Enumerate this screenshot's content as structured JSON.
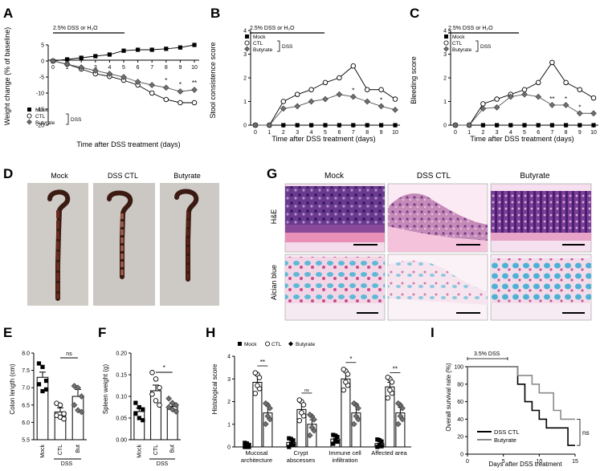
{
  "panels": {
    "A": {
      "letter": "A",
      "bracket_text": "2.5% DSS or H₂O",
      "ylabel": "Weight change (% of baseline)",
      "xlabel": "Time after DSS treatment (days)",
      "yticks": [
        "5",
        "0",
        "-5",
        "-10",
        "-15",
        "-20"
      ],
      "xticks": [
        "0",
        "1",
        "2",
        "3",
        "4",
        "5",
        "6",
        "7",
        "8",
        "9",
        "10"
      ],
      "legend": [
        "Mock",
        "CTL",
        "Butyrate"
      ],
      "legend_group": "DSS",
      "sig": [
        "*",
        "*",
        "**"
      ]
    },
    "B": {
      "letter": "B",
      "bracket_text": "2.5% DSS or H₂O",
      "ylabel": "Stool consistence score",
      "xlabel": "Time after DSS treatment (days)",
      "yticks": [
        "4",
        "3",
        "2",
        "1",
        "0"
      ],
      "xticks": [
        "0",
        "1",
        "2",
        "3",
        "4",
        "5",
        "6",
        "7",
        "8",
        "9",
        "10"
      ],
      "legend": [
        "Mock",
        "CTL",
        "Butyrate"
      ],
      "legend_group": "DSS",
      "sig": [
        "*",
        "*"
      ]
    },
    "C": {
      "letter": "C",
      "bracket_text": "2.5% DSS or H₂O",
      "ylabel": "Bleeding score",
      "xlabel": "Time after DSS treatment (days)",
      "yticks": [
        "4",
        "3",
        "2",
        "1",
        "0"
      ],
      "xticks": [
        "0",
        "1",
        "2",
        "3",
        "4",
        "5",
        "6",
        "7",
        "8",
        "9",
        "10"
      ],
      "legend": [
        "Mock",
        "CTL",
        "Butyrate"
      ],
      "legend_group": "DSS",
      "sig": [
        "**",
        "*",
        "*"
      ]
    },
    "D": {
      "letter": "D",
      "labels": [
        "Mock",
        "DSS CTL",
        "Butyrate"
      ]
    },
    "G": {
      "letter": "G",
      "columns": [
        "Mock",
        "DSS CTL",
        "Butyrate"
      ],
      "rows": [
        "H&E",
        "Alcian blue"
      ]
    },
    "E": {
      "letter": "E",
      "ylabel": "Colon length (cm)",
      "yticks": [
        "8.0",
        "7.5",
        "7.0",
        "6.5",
        "6.0",
        "5.5"
      ],
      "categories": [
        "Mock",
        "CTL",
        "But"
      ],
      "group": "DSS",
      "sig": "ns"
    },
    "F": {
      "letter": "F",
      "ylabel": "Spleen weight (g)",
      "yticks": [
        "0.20",
        "0.15",
        "0.10",
        "0.05",
        "0.00"
      ],
      "categories": [
        "Mock",
        "CTL",
        "But"
      ],
      "group": "DSS",
      "sig": "*"
    },
    "H": {
      "letter": "H",
      "ylabel": "Histological score",
      "yticks": [
        "4",
        "3",
        "2",
        "1",
        "0"
      ],
      "legend": [
        "Mock",
        "CTL",
        "Butyrate"
      ],
      "categories": [
        "Mucosal\narchitecture",
        "Crypt\nabscesses",
        "Immune cell\ninfiltration",
        "Affected area"
      ],
      "sig": [
        "**",
        "ns",
        "*",
        "**"
      ]
    },
    "I": {
      "letter": "I",
      "bracket_text": "3.5% DSS",
      "ylabel": "Overall survival rate (%)",
      "xlabel": "Days after DSS treatment",
      "yticks": [
        "100",
        "80",
        "60",
        "40",
        "20",
        "0"
      ],
      "xticks": [
        "0",
        "5",
        "10",
        "15"
      ],
      "legend": [
        "DSS CTL",
        "Butyrate"
      ],
      "sig": "ns"
    }
  },
  "chart_data": [
    {
      "panel": "A",
      "type": "line",
      "x": [
        0,
        1,
        2,
        3,
        4,
        5,
        6,
        7,
        8,
        9,
        10
      ],
      "ylim": [
        -20,
        5
      ],
      "series": [
        {
          "name": "Mock",
          "values": [
            0,
            0.5,
            1,
            1.5,
            2,
            3.2,
            3.5,
            3.5,
            3.8,
            4.2,
            5
          ]
        },
        {
          "name": "CTL",
          "values": [
            0,
            -1,
            -2.5,
            -4,
            -4.8,
            -6,
            -7.5,
            -10,
            -12,
            -13,
            -13
          ]
        },
        {
          "name": "Butyrate",
          "values": [
            0,
            -1,
            -2,
            -3,
            -4,
            -5,
            -6.5,
            -7.5,
            -8.3,
            -9.5,
            -9
          ]
        }
      ]
    },
    {
      "panel": "B",
      "type": "line",
      "x": [
        0,
        1,
        2,
        3,
        4,
        5,
        6,
        7,
        8,
        9,
        10
      ],
      "ylim": [
        0,
        4
      ],
      "series": [
        {
          "name": "Mock",
          "values": [
            0,
            0,
            0,
            0,
            0,
            0,
            0,
            0,
            0,
            0,
            0
          ]
        },
        {
          "name": "CTL",
          "values": [
            0,
            0,
            1,
            1.3,
            1.5,
            1.8,
            2.0,
            2.5,
            1.5,
            1.5,
            1.1
          ]
        },
        {
          "name": "Butyrate",
          "values": [
            0,
            0,
            0.7,
            0.8,
            1.0,
            1.1,
            1.3,
            1.2,
            1.0,
            0.8,
            0.65
          ]
        }
      ]
    },
    {
      "panel": "C",
      "type": "line",
      "x": [
        0,
        1,
        2,
        3,
        4,
        5,
        6,
        7,
        8,
        9,
        10
      ],
      "ylim": [
        0,
        4
      ],
      "series": [
        {
          "name": "Mock",
          "values": [
            0,
            0,
            0,
            0,
            0,
            0,
            0,
            0,
            0,
            0,
            0
          ]
        },
        {
          "name": "CTL",
          "values": [
            0,
            0,
            0.9,
            1.1,
            1.3,
            1.5,
            1.8,
            2.65,
            1.8,
            1.5,
            1.15
          ]
        },
        {
          "name": "Butyrate",
          "values": [
            0,
            0,
            0.7,
            0.75,
            1.2,
            1.3,
            1.2,
            0.85,
            0.85,
            0.5,
            0.5
          ]
        }
      ]
    },
    {
      "panel": "E",
      "type": "bar",
      "categories": [
        "Mock",
        "CTL",
        "But"
      ],
      "values": [
        7.3,
        6.3,
        6.75
      ],
      "errors": [
        0.15,
        0.12,
        0.2
      ],
      "ylim": [
        5.5,
        8.0
      ],
      "points": [
        [
          7.7,
          7.6,
          7.2,
          7.1,
          6.9,
          6.95
        ],
        [
          6.55,
          6.5,
          6.25,
          6.2,
          6.15,
          6.1
        ],
        [
          7.05,
          7.0,
          6.75,
          6.5,
          6.35,
          6.3
        ]
      ]
    },
    {
      "panel": "F",
      "type": "bar",
      "categories": [
        "Mock",
        "CTL",
        "But"
      ],
      "values": [
        0.065,
        0.113,
        0.077
      ],
      "errors": [
        0.008,
        0.013,
        0.006
      ],
      "ylim": [
        0,
        0.2
      ],
      "points": [
        [
          0.085,
          0.075,
          0.07,
          0.06,
          0.05,
          0.045
        ],
        [
          0.155,
          0.14,
          0.12,
          0.105,
          0.09,
          0.08
        ],
        [
          0.095,
          0.085,
          0.08,
          0.075,
          0.07,
          0.065
        ]
      ]
    },
    {
      "panel": "H",
      "type": "bar",
      "categories": [
        "Mucosal architecture",
        "Crypt abscesses",
        "Immune cell infiltration",
        "Affected area"
      ],
      "ylim": [
        0,
        4
      ],
      "series": [
        {
          "name": "Mock",
          "values": [
            0,
            0.2,
            0.35,
            0.15
          ],
          "errors": [
            0,
            0.15,
            0.2,
            0.1
          ]
        },
        {
          "name": "CTL",
          "values": [
            2.85,
            1.65,
            3.0,
            2.65
          ],
          "errors": [
            0.3,
            0.3,
            0.3,
            0.2
          ]
        },
        {
          "name": "Butyrate",
          "values": [
            1.5,
            1.0,
            1.5,
            1.5
          ],
          "errors": [
            0.3,
            0.2,
            0.4,
            0.25
          ]
        }
      ]
    },
    {
      "panel": "I",
      "type": "line",
      "xlim": [
        0,
        15
      ],
      "ylim": [
        0,
        100
      ],
      "series": [
        {
          "name": "DSS CTL",
          "x": [
            0,
            7,
            7,
            8,
            8,
            9,
            9,
            10,
            10,
            11,
            11,
            14,
            14,
            15
          ],
          "values": [
            100,
            100,
            80,
            80,
            60,
            60,
            50,
            50,
            40,
            40,
            30,
            30,
            10,
            10
          ]
        },
        {
          "name": "Butyrate",
          "x": [
            0,
            7,
            7,
            9,
            9,
            10,
            10,
            12,
            12,
            13,
            13,
            15
          ],
          "values": [
            100,
            100,
            90,
            90,
            80,
            80,
            70,
            70,
            50,
            50,
            40,
            40
          ]
        }
      ]
    }
  ],
  "colors": {
    "axis": "#000000",
    "mock": "#000000",
    "ctl_fill": "#ffffff",
    "butyrate": "#707070",
    "survival_ctl": "#000000",
    "survival_butyrate": "#8a8a8a"
  }
}
